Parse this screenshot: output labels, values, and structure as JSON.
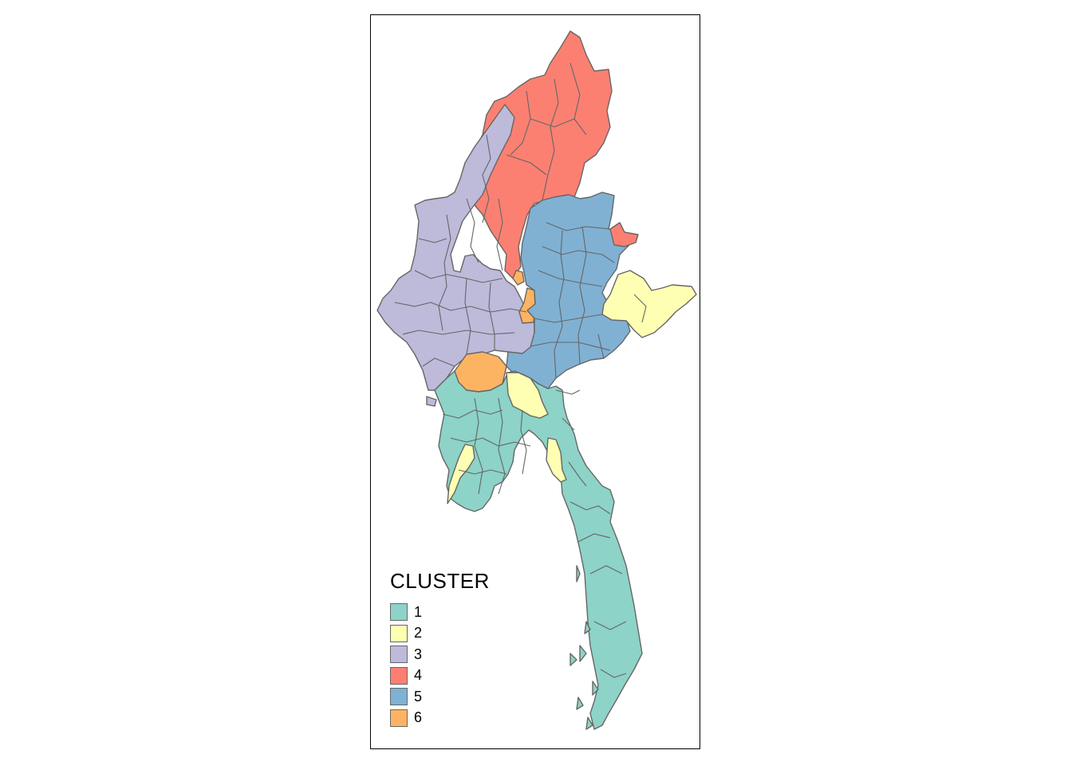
{
  "map": {
    "legend": {
      "title": "CLUSTER",
      "items": [
        {
          "label": "1",
          "color": "#8DD3C7"
        },
        {
          "label": "2",
          "color": "#FFFFB3"
        },
        {
          "label": "3",
          "color": "#BEBADA"
        },
        {
          "label": "4",
          "color": "#FB8072"
        },
        {
          "label": "5",
          "color": "#80B1D3"
        },
        {
          "label": "6",
          "color": "#FDB462"
        }
      ]
    },
    "outline_color": "#666666"
  }
}
